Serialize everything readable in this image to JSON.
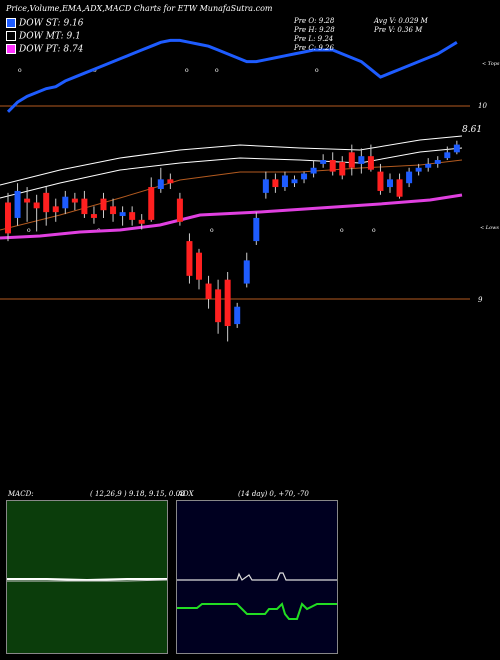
{
  "header": {
    "title": "Price,Volume,EMA,ADX,MACD Charts for ETW MunafaSutra.com"
  },
  "legend": [
    {
      "label": "DOW ST:",
      "value": "9.16",
      "color": "#1e5cff"
    },
    {
      "label": "DOW MT:",
      "value": "9.1",
      "color": "#000000"
    },
    {
      "label": "DOW PT:",
      "value": "8.74",
      "color": "#ff33ff"
    }
  ],
  "ohlc": {
    "open": "Pre O: 9.28",
    "high": "Pre H: 9.28",
    "low": "Pre L: 9.24",
    "close": "Pre C: 9.26",
    "avg_volume": "Avg V: 0.029 M",
    "pre_volume": "Pre V: 0.36 M"
  },
  "axis": {
    "top": "< Tops",
    "lows": "< Lows",
    "ref_10": "10",
    "ref_9": "9",
    "last_label": "8.61"
  },
  "panels": {
    "macd_label": "MACD:",
    "macd_params": "( 12,26,9 ) 9.18, 9.15, 0.03",
    "adx_label": "ADX",
    "adx_params": "(14 day) 0, +70, -70"
  },
  "chart_data": {
    "type": "candlestick",
    "title": "Price,Volume,EMA,ADX,MACD Charts for ETW MunafaSutra.com",
    "y_reference_lines": [
      10,
      9
    ],
    "candles": [
      {
        "o": 9.5,
        "c": 9.34,
        "h": 9.55,
        "l": 9.3
      },
      {
        "o": 9.42,
        "c": 9.56,
        "h": 9.6,
        "l": 9.38
      },
      {
        "o": 9.52,
        "c": 9.5,
        "h": 9.58,
        "l": 9.4
      },
      {
        "o": 9.5,
        "c": 9.47,
        "h": 9.54,
        "l": 9.35
      },
      {
        "o": 9.55,
        "c": 9.45,
        "h": 9.58,
        "l": 9.38
      },
      {
        "o": 9.48,
        "c": 9.45,
        "h": 9.52,
        "l": 9.4
      },
      {
        "o": 9.47,
        "c": 9.53,
        "h": 9.56,
        "l": 9.44
      },
      {
        "o": 9.52,
        "c": 9.5,
        "h": 9.55,
        "l": 9.46
      },
      {
        "o": 9.52,
        "c": 9.44,
        "h": 9.56,
        "l": 9.42
      },
      {
        "o": 9.44,
        "c": 9.42,
        "h": 9.48,
        "l": 9.39
      },
      {
        "o": 9.52,
        "c": 9.46,
        "h": 9.55,
        "l": 9.42
      },
      {
        "o": 9.48,
        "c": 9.44,
        "h": 9.52,
        "l": 9.4
      },
      {
        "o": 9.43,
        "c": 9.45,
        "h": 9.48,
        "l": 9.38
      },
      {
        "o": 9.45,
        "c": 9.41,
        "h": 9.48,
        "l": 9.38
      },
      {
        "o": 9.41,
        "c": 9.39,
        "h": 9.44,
        "l": 9.36
      },
      {
        "o": 9.58,
        "c": 9.41,
        "h": 9.63,
        "l": 9.4
      },
      {
        "o": 9.57,
        "c": 9.62,
        "h": 9.68,
        "l": 9.55
      },
      {
        "o": 9.62,
        "c": 9.6,
        "h": 9.65,
        "l": 9.57
      },
      {
        "o": 9.52,
        "c": 9.4,
        "h": 9.55,
        "l": 9.38
      },
      {
        "o": 9.3,
        "c": 9.12,
        "h": 9.34,
        "l": 9.08
      },
      {
        "o": 9.24,
        "c": 9.1,
        "h": 9.26,
        "l": 9.05
      },
      {
        "o": 9.08,
        "c": 9.0,
        "h": 9.12,
        "l": 8.95
      },
      {
        "o": 9.05,
        "c": 8.88,
        "h": 9.1,
        "l": 8.82
      },
      {
        "o": 9.1,
        "c": 8.86,
        "h": 9.14,
        "l": 8.78
      },
      {
        "o": 8.87,
        "c": 8.96,
        "h": 8.98,
        "l": 8.85
      },
      {
        "o": 9.08,
        "c": 9.2,
        "h": 9.24,
        "l": 9.06
      },
      {
        "o": 9.3,
        "c": 9.42,
        "h": 9.45,
        "l": 9.28
      },
      {
        "o": 9.55,
        "c": 9.62,
        "h": 9.66,
        "l": 9.52
      },
      {
        "o": 9.62,
        "c": 9.58,
        "h": 9.65,
        "l": 9.55
      },
      {
        "o": 9.58,
        "c": 9.64,
        "h": 9.66,
        "l": 9.56
      },
      {
        "o": 9.6,
        "c": 9.62,
        "h": 9.64,
        "l": 9.58
      },
      {
        "o": 9.62,
        "c": 9.65,
        "h": 9.66,
        "l": 9.6
      },
      {
        "o": 9.65,
        "c": 9.68,
        "h": 9.72,
        "l": 9.63
      },
      {
        "o": 9.7,
        "c": 9.72,
        "h": 9.75,
        "l": 9.68
      },
      {
        "o": 9.72,
        "c": 9.66,
        "h": 9.76,
        "l": 9.64
      },
      {
        "o": 9.71,
        "c": 9.64,
        "h": 9.74,
        "l": 9.62
      },
      {
        "o": 9.76,
        "c": 9.68,
        "h": 9.8,
        "l": 9.64
      },
      {
        "o": 9.7,
        "c": 9.74,
        "h": 9.78,
        "l": 9.65
      },
      {
        "o": 9.74,
        "c": 9.67,
        "h": 9.8,
        "l": 9.66
      },
      {
        "o": 9.66,
        "c": 9.56,
        "h": 9.7,
        "l": 9.54
      },
      {
        "o": 9.58,
        "c": 9.62,
        "h": 9.65,
        "l": 9.55
      },
      {
        "o": 9.62,
        "c": 9.53,
        "h": 9.65,
        "l": 9.52
      },
      {
        "o": 9.6,
        "c": 9.66,
        "h": 9.68,
        "l": 9.58
      },
      {
        "o": 9.66,
        "c": 9.68,
        "h": 9.7,
        "l": 9.64
      },
      {
        "o": 9.68,
        "c": 9.7,
        "h": 9.73,
        "l": 9.66
      },
      {
        "o": 9.7,
        "c": 9.72,
        "h": 9.74,
        "l": 9.68
      },
      {
        "o": 9.73,
        "c": 9.76,
        "h": 9.79,
        "l": 9.72
      },
      {
        "o": 9.76,
        "c": 9.8,
        "h": 9.82,
        "l": 9.75
      }
    ],
    "series": [
      {
        "name": "DOW ST",
        "values": [
          9.4,
          9.45,
          9.48,
          9.5,
          9.52,
          9.53,
          9.56,
          9.58,
          9.6,
          9.62,
          9.64,
          9.66,
          9.68,
          9.7,
          9.72,
          9.74,
          9.76,
          9.77,
          9.77,
          9.76,
          9.75,
          9.74,
          9.72,
          9.7,
          9.68,
          9.66,
          9.66,
          9.67,
          9.68,
          9.69,
          9.7,
          9.71,
          9.72,
          9.72,
          9.72,
          9.7,
          9.68,
          9.66,
          9.62,
          9.58,
          9.6,
          9.62,
          9.64,
          9.66,
          9.68,
          9.7,
          9.73,
          9.76
        ]
      }
    ]
  }
}
